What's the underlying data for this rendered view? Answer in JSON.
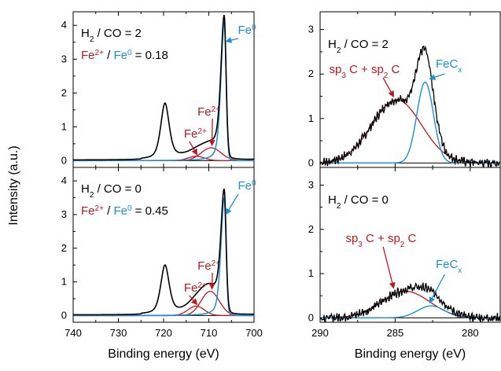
{
  "figure": {
    "ylabel": "Intensity (a.u.)",
    "colors": {
      "experimental": "#000000",
      "fe2": "#c0161c",
      "fe0": "#1a8fd4",
      "carbon": "#c0161c",
      "fecx": "#1a8fd4"
    }
  },
  "chart_data": [
    {
      "id": "fe-top",
      "type": "line",
      "region": "Fe 2p",
      "xlabel": "",
      "xlim": [
        740,
        700
      ],
      "ylim": [
        -0.2,
        4.4
      ],
      "yticks": [
        0,
        1,
        2,
        3,
        4
      ],
      "xticks": [
        740,
        730,
        720,
        710,
        700
      ],
      "condition": {
        "label": "H",
        "sub": "2",
        "rest": " / CO = 2"
      },
      "ratio": {
        "a": "Fe",
        "a_sup": "2+",
        "sep": " / ",
        "b": "Fe",
        "b_sup": "0",
        "value": " = 0.18"
      },
      "annotations": {
        "fe0": {
          "text": "Fe",
          "sup": "0"
        },
        "fe2_a": {
          "text": "Fe",
          "sup": "2+"
        },
        "fe2_b": {
          "text": "Fe",
          "sup": "2+"
        }
      },
      "peaks": {
        "fe0": {
          "center": 706.6,
          "height": 4.1,
          "width": 0.75
        },
        "fe2_a": {
          "center": 709.5,
          "height": 0.38,
          "width": 2.2
        },
        "fe2_b": {
          "center": 712.8,
          "height": 0.13,
          "width": 1.8
        },
        "satellite": {
          "center": 719.7,
          "height": 1.6,
          "width": 0.95
        }
      }
    },
    {
      "id": "fe-bottom",
      "type": "line",
      "region": "Fe 2p",
      "xlabel": "Binding energy (eV)",
      "xlim": [
        740,
        700
      ],
      "ylim": [
        -0.2,
        4.4
      ],
      "yticks": [
        0,
        1,
        2,
        3,
        4
      ],
      "xticks": [
        740,
        730,
        720,
        710,
        700
      ],
      "condition": {
        "label": "H",
        "sub": "2",
        "rest": " / CO = 0"
      },
      "ratio": {
        "a": "Fe",
        "a_sup": "2+",
        "sep": " / ",
        "b": "Fe",
        "b_sup": "0",
        "value": " = 0.45"
      },
      "annotations": {
        "fe0": {
          "text": "Fe",
          "sup": "0"
        },
        "fe2_a": {
          "text": "Fe",
          "sup": "2+"
        },
        "fe2_b": {
          "text": "Fe",
          "sup": "2+"
        }
      },
      "peaks": {
        "fe0": {
          "center": 706.6,
          "height": 3.5,
          "width": 0.75
        },
        "fe2_a": {
          "center": 709.7,
          "height": 0.72,
          "width": 2.0
        },
        "fe2_b": {
          "center": 712.8,
          "height": 0.28,
          "width": 1.8
        },
        "satellite": {
          "center": 719.7,
          "height": 1.4,
          "width": 0.95
        }
      }
    },
    {
      "id": "c-top",
      "type": "line",
      "region": "C 1s",
      "xlabel": "",
      "xlim": [
        290,
        278
      ],
      "ylim": [
        -0.1,
        3.4
      ],
      "yticks": [
        0,
        1,
        2,
        3
      ],
      "xticks": [
        290,
        285,
        280
      ],
      "condition": {
        "label": "H",
        "sub": "2",
        "rest": " / CO = 2"
      },
      "annotations": {
        "carbon": {
          "t1": "sp",
          "s1": "3",
          "t2": " C + sp",
          "s2": "2",
          "t3": " C"
        },
        "fecx": {
          "text": "FeC",
          "sub": "x"
        }
      },
      "peaks": {
        "carbon": {
          "center": 284.9,
          "height": 1.42,
          "width": 1.65
        },
        "fecx": {
          "center": 283.0,
          "height": 1.82,
          "width": 0.55
        }
      }
    },
    {
      "id": "c-bottom",
      "type": "line",
      "region": "C 1s",
      "xlabel": "Binding energy (eV)",
      "xlim": [
        290,
        278
      ],
      "ylim": [
        -0.1,
        3.4
      ],
      "yticks": [
        0,
        1,
        2,
        3
      ],
      "xticks": [
        290,
        285,
        280
      ],
      "condition": {
        "label": "H",
        "sub": "2",
        "rest": " / CO = 0"
      },
      "annotations": {
        "carbon": {
          "t1": "sp",
          "s1": "3",
          "t2": " C + sp",
          "s2": "2",
          "t3": " C"
        },
        "fecx": {
          "text": "FeC",
          "sub": "x"
        }
      },
      "peaks": {
        "carbon": {
          "center": 284.3,
          "height": 0.6,
          "width": 1.6
        },
        "fecx": {
          "center": 282.6,
          "height": 0.27,
          "width": 0.9
        }
      }
    }
  ]
}
